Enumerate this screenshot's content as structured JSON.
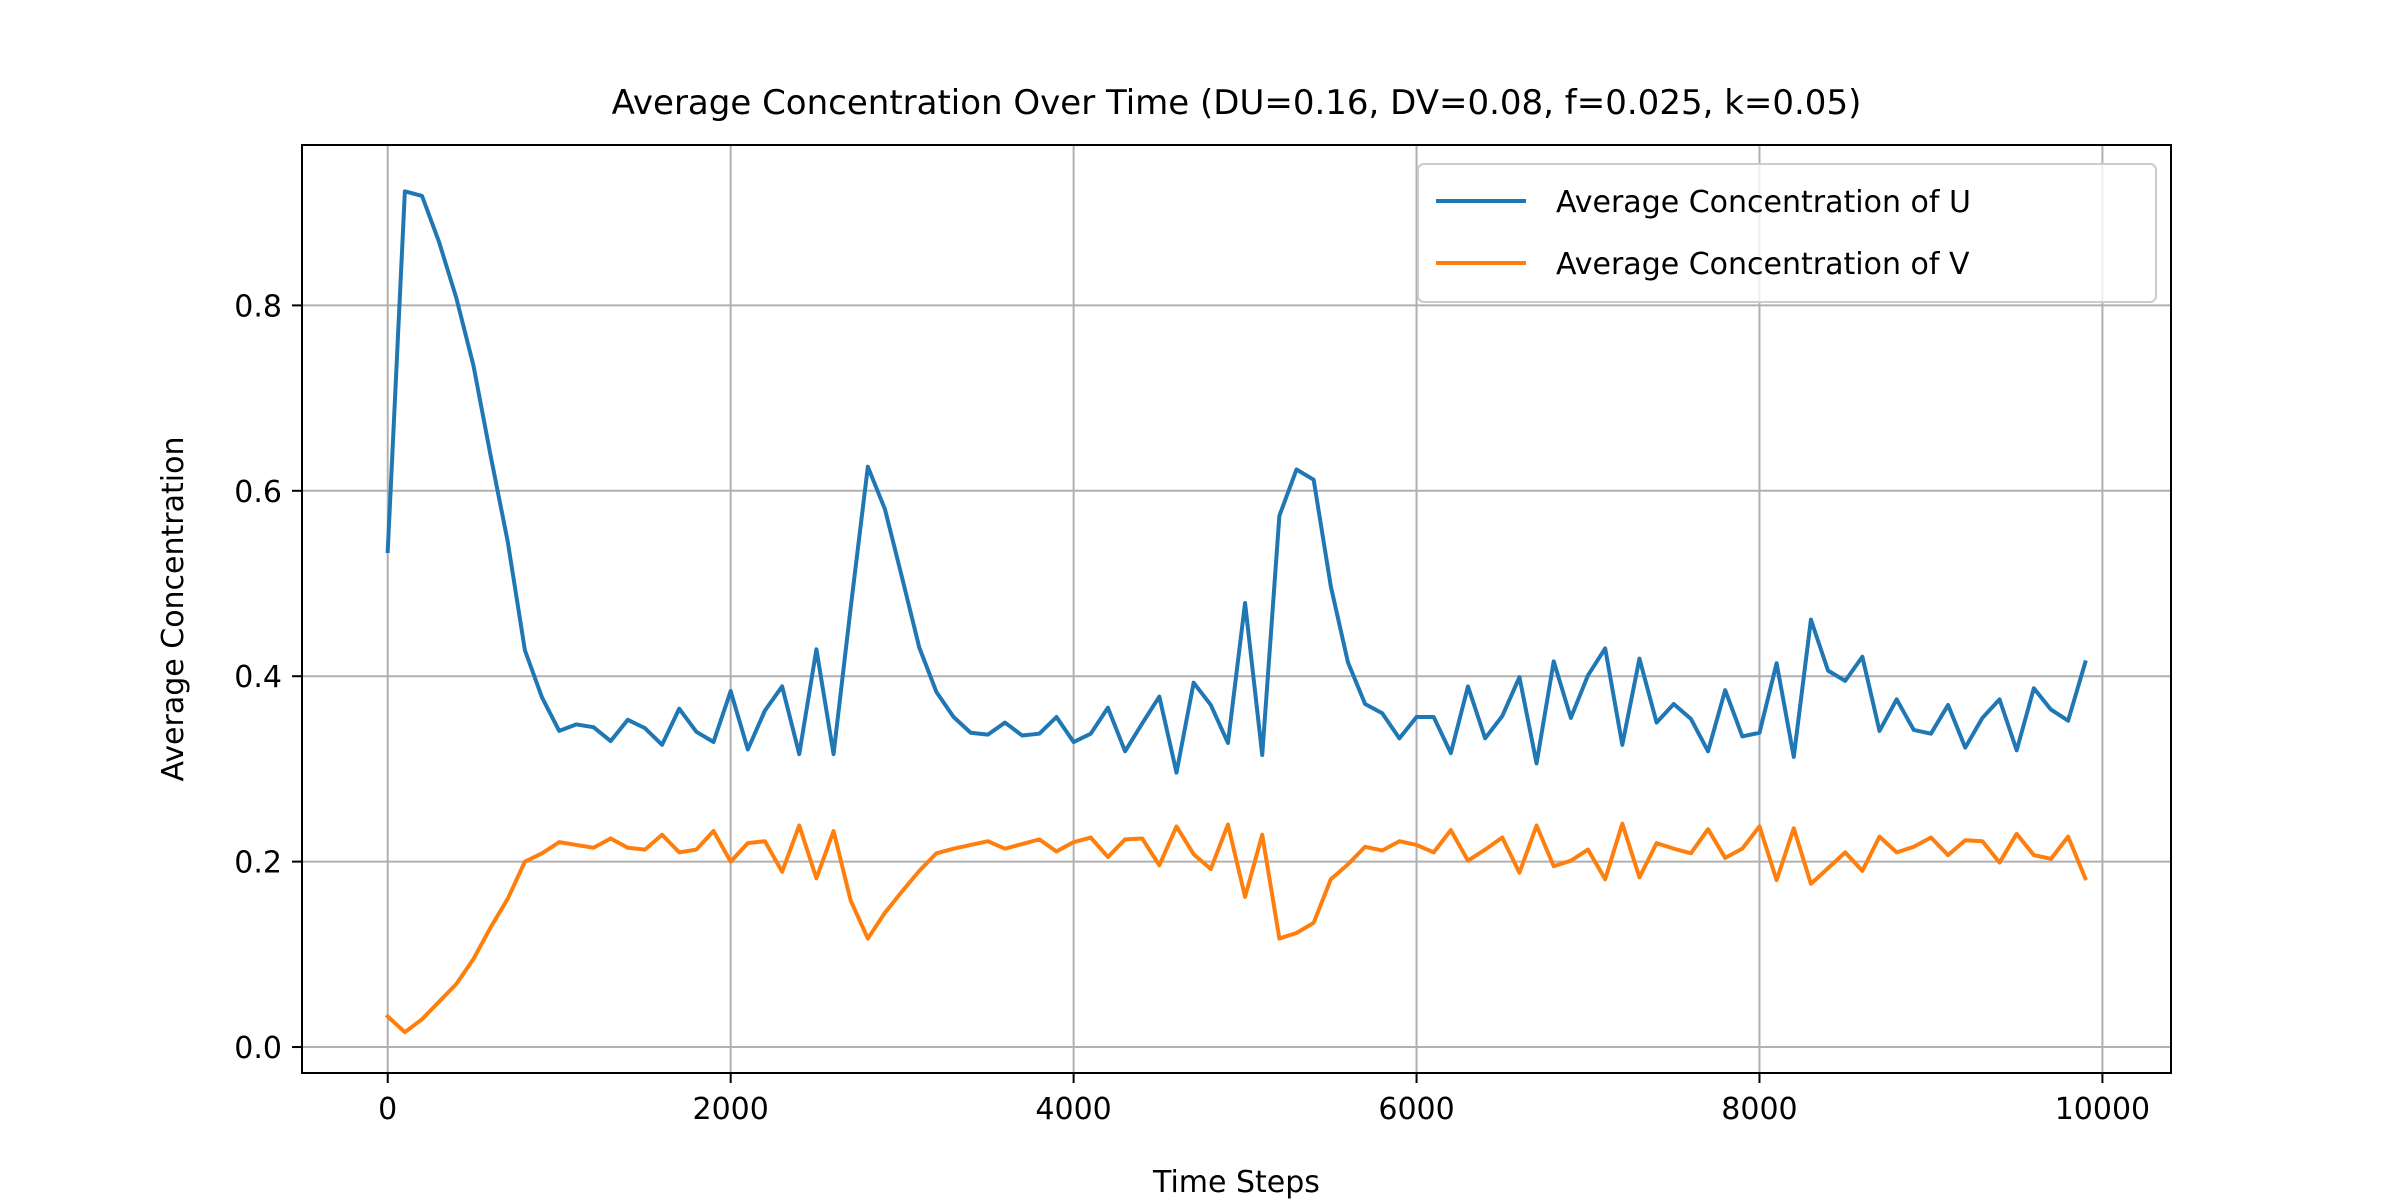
{
  "chart_data": {
    "type": "line",
    "title": "Average Concentration Over Time (DU=0.16, DV=0.08, f=0.025, k=0.05)",
    "xlabel": "Time Steps",
    "ylabel": "Average Concentration",
    "xlim": [
      -500,
      10400
    ],
    "ylim": [
      -0.028,
      0.973
    ],
    "xticks": [
      0,
      2000,
      4000,
      6000,
      8000,
      10000
    ],
    "xtick_labels": [
      "0",
      "2000",
      "4000",
      "6000",
      "8000",
      "10000"
    ],
    "yticks": [
      0.0,
      0.2,
      0.4,
      0.6,
      0.8
    ],
    "ytick_labels": [
      "0.0",
      "0.2",
      "0.4",
      "0.6",
      "0.8"
    ],
    "grid": true,
    "legend_position": "top-right",
    "x": [
      0,
      100,
      200,
      300,
      400,
      500,
      600,
      700,
      800,
      900,
      1000,
      1100,
      1200,
      1300,
      1400,
      1500,
      1600,
      1700,
      1800,
      1900,
      2000,
      2100,
      2200,
      2300,
      2400,
      2500,
      2600,
      2700,
      2800,
      2900,
      3000,
      3100,
      3200,
      3300,
      3400,
      3500,
      3600,
      3700,
      3800,
      3900,
      4000,
      4100,
      4200,
      4300,
      4400,
      4500,
      4600,
      4700,
      4800,
      4900,
      5000,
      5100,
      5200,
      5300,
      5400,
      5500,
      5600,
      5700,
      5800,
      5900,
      6000,
      6100,
      6200,
      6300,
      6400,
      6500,
      6600,
      6700,
      6800,
      6900,
      7000,
      7100,
      7200,
      7300,
      7400,
      7500,
      7600,
      7700,
      7800,
      7900,
      8000,
      8100,
      8200,
      8300,
      8400,
      8500,
      8600,
      8700,
      8800,
      8900,
      9000,
      9100,
      9200,
      9300,
      9400,
      9500,
      9600,
      9700,
      9800,
      9900
    ],
    "series": [
      {
        "name": "Average Concentration of U",
        "color": "#1f77b4",
        "values": [
          0.535,
          0.923,
          0.918,
          0.868,
          0.808,
          0.735,
          0.638,
          0.545,
          0.428,
          0.377,
          0.341,
          0.348,
          0.345,
          0.33,
          0.353,
          0.344,
          0.326,
          0.365,
          0.34,
          0.329,
          0.384,
          0.321,
          0.363,
          0.389,
          0.316,
          0.429,
          0.316,
          0.474,
          0.626,
          0.58,
          0.506,
          0.431,
          0.383,
          0.356,
          0.339,
          0.337,
          0.35,
          0.336,
          0.338,
          0.356,
          0.329,
          0.338,
          0.366,
          0.319,
          0.349,
          0.378,
          0.296,
          0.393,
          0.369,
          0.328,
          0.479,
          0.315,
          0.573,
          0.623,
          0.612,
          0.497,
          0.415,
          0.37,
          0.36,
          0.333,
          0.356,
          0.356,
          0.317,
          0.389,
          0.333,
          0.357,
          0.399,
          0.306,
          0.416,
          0.355,
          0.401,
          0.43,
          0.326,
          0.419,
          0.35,
          0.37,
          0.354,
          0.319,
          0.385,
          0.335,
          0.339,
          0.414,
          0.313,
          0.461,
          0.406,
          0.395,
          0.421,
          0.341,
          0.375,
          0.342,
          0.338,
          0.369,
          0.323,
          0.355,
          0.375,
          0.32,
          0.387,
          0.364,
          0.352,
          0.415
        ]
      },
      {
        "name": "Average Concentration of V",
        "color": "#ff7f0e",
        "values": [
          0.033,
          0.016,
          0.03,
          0.049,
          0.068,
          0.095,
          0.129,
          0.16,
          0.2,
          0.209,
          0.221,
          0.218,
          0.215,
          0.225,
          0.215,
          0.213,
          0.229,
          0.21,
          0.213,
          0.233,
          0.2,
          0.22,
          0.222,
          0.189,
          0.239,
          0.182,
          0.233,
          0.158,
          0.117,
          0.145,
          0.168,
          0.19,
          0.209,
          0.214,
          0.218,
          0.222,
          0.214,
          0.219,
          0.224,
          0.211,
          0.221,
          0.226,
          0.205,
          0.224,
          0.225,
          0.196,
          0.238,
          0.208,
          0.192,
          0.24,
          0.162,
          0.229,
          0.117,
          0.123,
          0.134,
          0.181,
          0.197,
          0.216,
          0.212,
          0.222,
          0.218,
          0.21,
          0.234,
          0.201,
          0.213,
          0.226,
          0.188,
          0.239,
          0.195,
          0.201,
          0.213,
          0.181,
          0.241,
          0.183,
          0.22,
          0.214,
          0.209,
          0.235,
          0.204,
          0.214,
          0.238,
          0.18,
          0.236,
          0.176,
          0.193,
          0.21,
          0.19,
          0.227,
          0.21,
          0.216,
          0.226,
          0.207,
          0.223,
          0.222,
          0.199,
          0.23,
          0.207,
          0.203,
          0.227,
          0.182
        ]
      }
    ]
  }
}
